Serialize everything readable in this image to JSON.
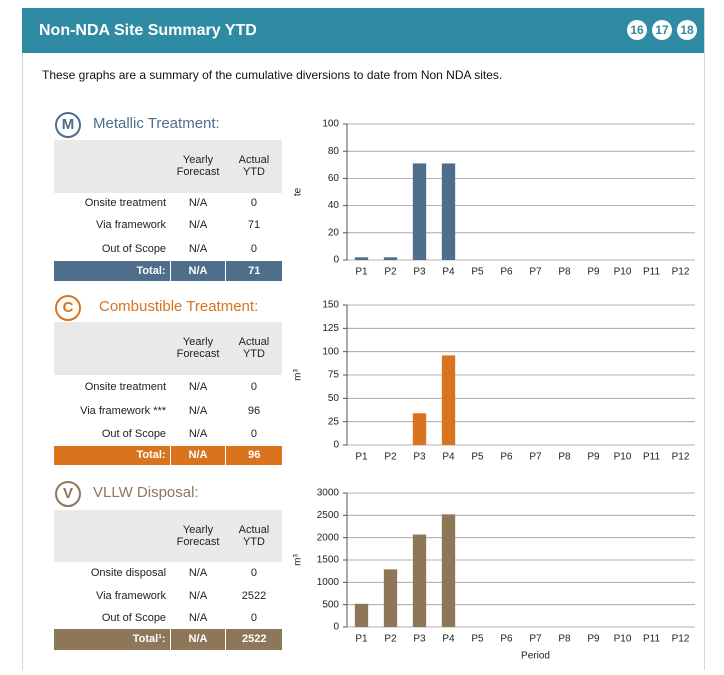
{
  "header": {
    "title": "Non-NDA Site Summary YTD",
    "badges": [
      "16",
      "17",
      "18"
    ]
  },
  "intro": "These graphs are a summary of the cumulative diversions to date from Non NDA sites.",
  "sections": [
    {
      "icon": "M",
      "title": "Metallic Treatment:",
      "color": "#4e6e8c",
      "columns": [
        "Yearly Forecast",
        "Actual YTD"
      ],
      "rows": [
        [
          "Onsite treatment",
          "N/A",
          0
        ],
        [
          "Via framework",
          "N/A",
          71
        ],
        [
          "Out of Scope",
          "N/A",
          0
        ]
      ],
      "total": [
        "Total:",
        "N/A",
        71
      ]
    },
    {
      "icon": "C",
      "title": "Combustible Treatment:",
      "color": "#d9731e",
      "columns": [
        "Yearly Forecast",
        "Actual YTD"
      ],
      "rows": [
        [
          "Onsite treatment",
          "N/A",
          0
        ],
        [
          "Via framework ***",
          "N/A",
          96
        ],
        [
          "Out of Scope",
          "N/A",
          0
        ]
      ],
      "total": [
        "Total:",
        "N/A",
        96
      ]
    },
    {
      "icon": "V",
      "title": "VLLW Disposal:",
      "color": "#8e7659",
      "columns": [
        "Yearly Forecast",
        "Actual YTD"
      ],
      "rows": [
        [
          "Onsite disposal",
          "N/A",
          0
        ],
        [
          "Via framework",
          "N/A",
          2522
        ],
        [
          "Out of Scope",
          "N/A",
          0
        ]
      ],
      "total": [
        "Total¹:",
        "N/A",
        2522
      ]
    }
  ],
  "chart_data": [
    {
      "type": "bar",
      "ylabel": "te",
      "categories": [
        "P1",
        "P2",
        "P3",
        "P4",
        "P5",
        "P6",
        "P7",
        "P8",
        "P9",
        "P10",
        "P11",
        "P12"
      ],
      "values": [
        2,
        2,
        71,
        71,
        0,
        0,
        0,
        0,
        0,
        0,
        0,
        0
      ],
      "color": "#4e6e8c",
      "ylim": [
        0,
        100
      ],
      "yticks": [
        0,
        20,
        40,
        60,
        80,
        100
      ],
      "grid": true
    },
    {
      "type": "bar",
      "ylabel": "m³",
      "categories": [
        "P1",
        "P2",
        "P3",
        "P4",
        "P5",
        "P6",
        "P7",
        "P8",
        "P9",
        "P10",
        "P11",
        "P12"
      ],
      "values": [
        0,
        0,
        34,
        96,
        0,
        0,
        0,
        0,
        0,
        0,
        0,
        0
      ],
      "color": "#d9731e",
      "ylim": [
        0,
        150
      ],
      "yticks": [
        0,
        25,
        50,
        75,
        100,
        125,
        150
      ],
      "grid": true
    },
    {
      "type": "bar",
      "ylabel": "m³",
      "xlabel": "Period",
      "categories": [
        "P1",
        "P2",
        "P3",
        "P4",
        "P5",
        "P6",
        "P7",
        "P8",
        "P9",
        "P10",
        "P11",
        "P12"
      ],
      "values": [
        520,
        1290,
        2070,
        2522,
        0,
        0,
        0,
        0,
        0,
        0,
        0,
        0
      ],
      "color": "#8e7659",
      "ylim": [
        0,
        3000
      ],
      "yticks": [
        0,
        500,
        1000,
        1500,
        2000,
        2500,
        3000
      ],
      "grid": true
    }
  ]
}
